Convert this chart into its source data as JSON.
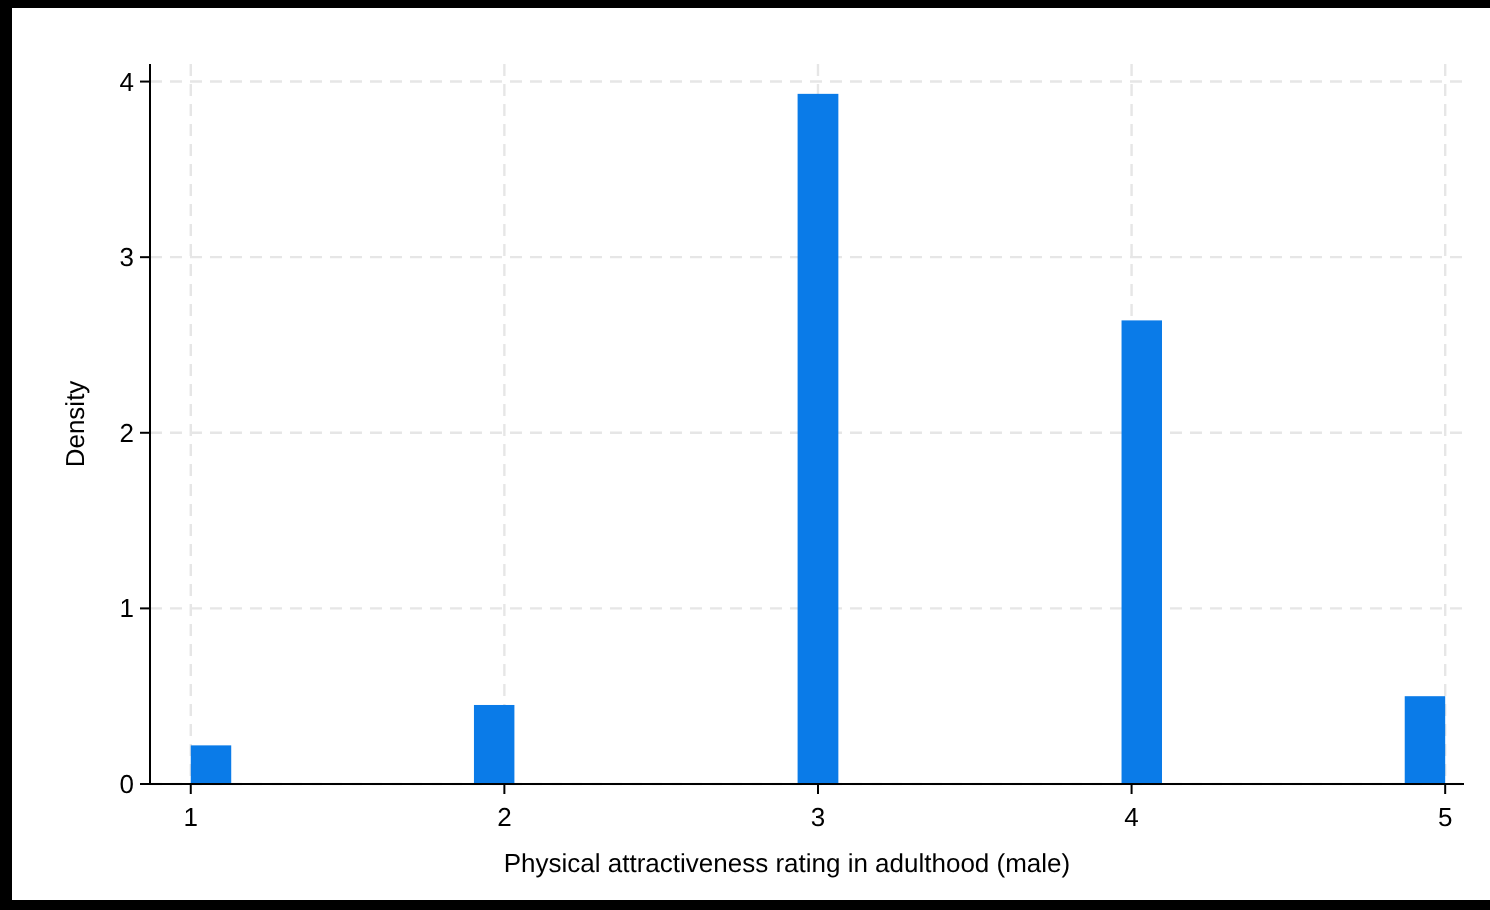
{
  "chart_data": {
    "type": "histogram",
    "xlabel": "Physical attractiveness rating in adulthood (male)",
    "ylabel": "Density",
    "bins": [
      1.0,
      1.129,
      1.258,
      1.387,
      1.516,
      1.645,
      1.774,
      1.903,
      2.032,
      2.161,
      2.29,
      2.419,
      2.548,
      2.677,
      2.806,
      2.935,
      3.065,
      3.194,
      3.323,
      3.452,
      3.581,
      3.71,
      3.839,
      3.968,
      4.097,
      4.226,
      4.355,
      4.484,
      4.613,
      4.742,
      4.871,
      5.0
    ],
    "values": [
      0.22,
      0,
      0,
      0,
      0,
      0,
      0,
      0.45,
      0,
      0,
      0,
      0,
      0,
      0,
      0,
      3.93,
      0,
      0,
      0,
      0,
      0,
      0,
      0,
      2.64,
      0,
      0,
      0,
      0,
      0,
      0,
      0.5
    ],
    "color": "#0a7be8",
    "xlim": [
      0.87,
      5.06
    ],
    "xticks": [
      1,
      2,
      3,
      4,
      5
    ],
    "ylim": [
      0,
      4.1
    ],
    "yticks": [
      0,
      1,
      2,
      3,
      4
    ],
    "grid": true
  }
}
